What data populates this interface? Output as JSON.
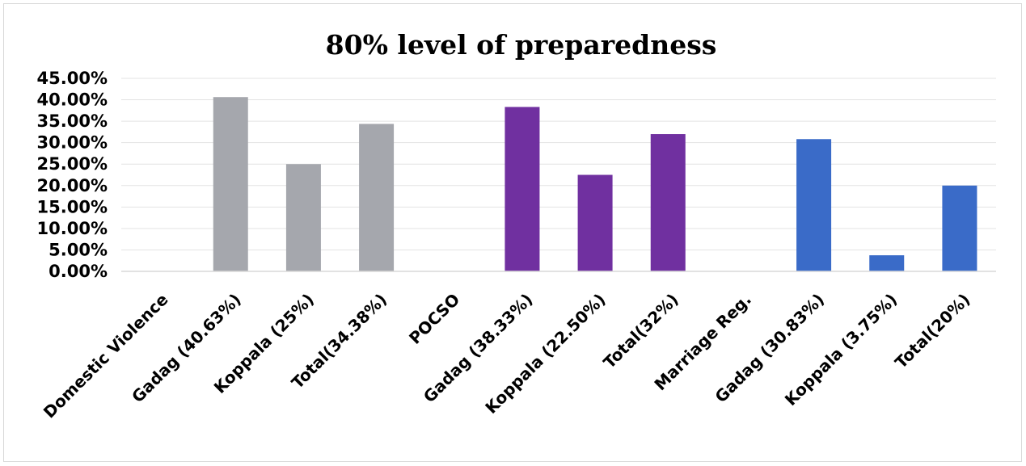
{
  "chart_data": {
    "type": "bar",
    "title": "80% level of preparedness",
    "xlabel": "",
    "ylabel": "",
    "ylim": [
      0,
      45
    ],
    "y_tick_labels": [
      "0.00%",
      "5.00%",
      "10.00%",
      "15.00%",
      "20.00%",
      "25.00%",
      "30.00%",
      "35.00%",
      "40.00%",
      "45.00%"
    ],
    "categories": [
      "Domestic Violence",
      "Gadag (40.63%)",
      "Koppala (25%)",
      "Total(34.38%)",
      "POCSO",
      "Gadag (38.33%)",
      "Koppala (22.50%)",
      "Total(32%)",
      "Marriage Reg.",
      "Gadag (30.83%)",
      "Koppala (3.75%)",
      "Total(20%)"
    ],
    "values": [
      0,
      40.63,
      25,
      34.38,
      0,
      38.33,
      22.5,
      32,
      0,
      30.83,
      3.75,
      20
    ],
    "bar_colors": [
      "#a5a7ad",
      "#a5a7ad",
      "#a5a7ad",
      "#a5a7ad",
      "#7030a0",
      "#7030a0",
      "#7030a0",
      "#7030a0",
      "#3a6bc8",
      "#3a6bc8",
      "#3a6bc8",
      "#3a6bc8"
    ],
    "grid": true,
    "legend": "none"
  }
}
